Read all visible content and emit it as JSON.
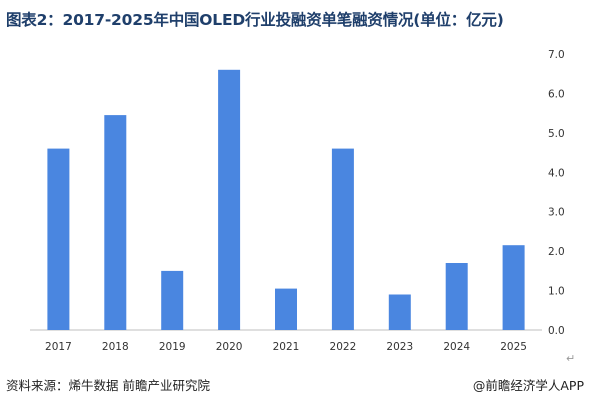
{
  "title": "图表2：2017-2025年中国OLED行业投融资单笔融资情况(单位：亿元)",
  "footer": {
    "source": "资料来源：烯牛数据 前瞻产业研究院",
    "brand": "@前瞻经济学人APP"
  },
  "colors": {
    "bar": "#4a86e0",
    "axis": "#bfbfbf"
  },
  "chart_data": {
    "type": "bar",
    "title": "图表2：2017-2025年中国OLED行业投融资单笔融资情况(单位：亿元)",
    "categories": [
      "2017",
      "2018",
      "2019",
      "2020",
      "2021",
      "2022",
      "2023",
      "2024",
      "2025"
    ],
    "values": [
      4.6,
      5.45,
      1.5,
      6.6,
      1.05,
      4.6,
      0.9,
      1.7,
      2.15
    ],
    "unit": "亿元",
    "ylim": [
      0,
      7
    ],
    "yticks": [
      "0.0",
      "1.0",
      "2.0",
      "3.0",
      "4.0",
      "5.0",
      "6.0",
      "7.0"
    ],
    "y_axis_side": "right",
    "grid": false,
    "legend": false
  }
}
